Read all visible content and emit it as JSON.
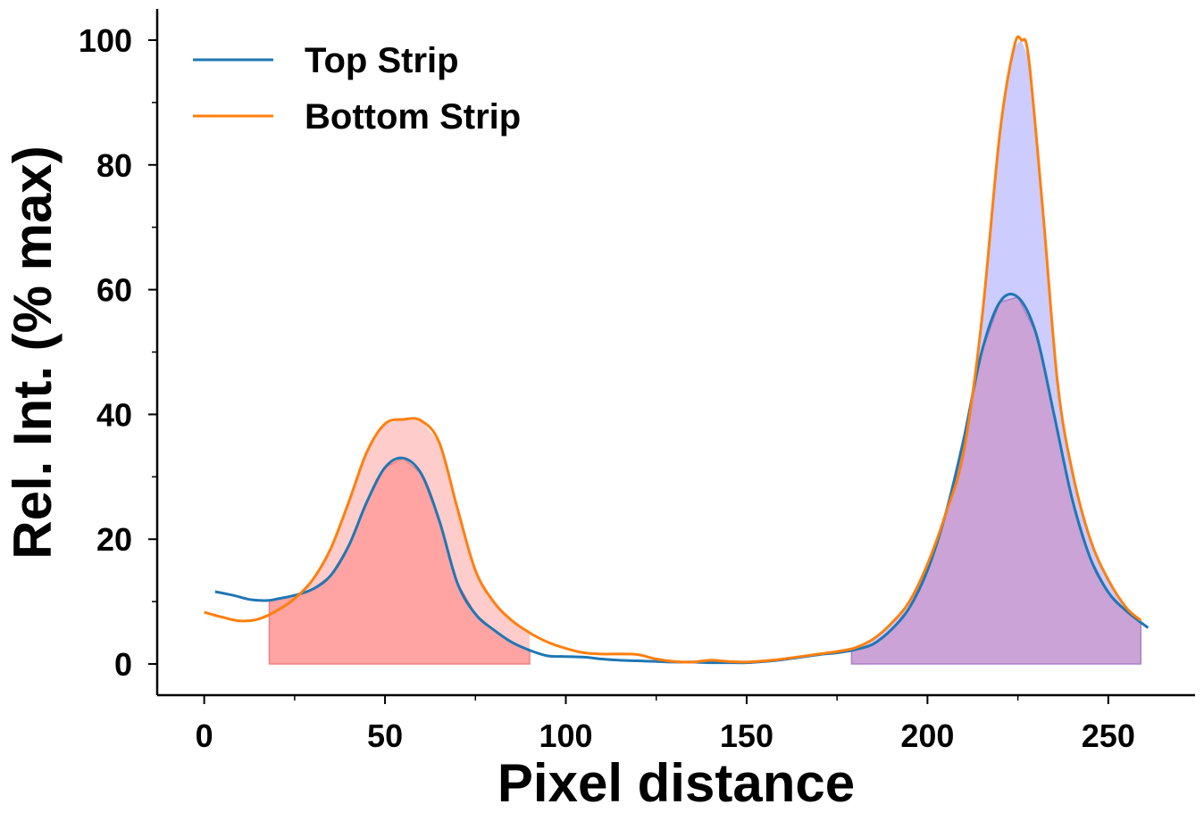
{
  "chart_data": {
    "type": "line",
    "xlabel": "Pixel distance",
    "ylabel": "Rel. Int. (% max)",
    "xlim": [
      -13,
      274
    ],
    "ylim": [
      -5,
      105
    ],
    "xticks": [
      0,
      50,
      100,
      150,
      200,
      250
    ],
    "yticks": [
      0,
      20,
      40,
      60,
      80,
      100
    ],
    "x_minor_step": 25,
    "y_minor_step": 10,
    "grid": false,
    "legend_position": "top-left",
    "series": [
      {
        "name": "Top Strip",
        "color": "#1f77b4",
        "x": [
          3,
          8,
          12,
          15,
          18,
          20,
          25,
          30,
          35,
          40,
          45,
          50,
          55,
          60,
          65,
          70,
          75,
          80,
          85,
          90,
          95,
          100,
          105,
          110,
          115,
          120,
          125,
          130,
          135,
          140,
          145,
          150,
          155,
          160,
          165,
          170,
          175,
          180,
          185,
          190,
          195,
          200,
          205,
          210,
          215,
          220,
          225,
          230,
          235,
          240,
          245,
          250,
          255,
          261
        ],
        "y": [
          11.6,
          11.0,
          10.4,
          10.2,
          10.2,
          10.4,
          11.0,
          12.0,
          14.2,
          19.0,
          26.0,
          31.5,
          33.0,
          30.5,
          23.0,
          13.0,
          8.0,
          5.5,
          3.5,
          2.2,
          1.3,
          1.2,
          1.1,
          0.8,
          0.6,
          0.5,
          0.4,
          0.3,
          0.3,
          0.2,
          0.2,
          0.2,
          0.4,
          0.7,
          1.1,
          1.5,
          1.8,
          2.3,
          3.2,
          5.5,
          9.0,
          15.0,
          24.0,
          36.0,
          50.0,
          58.0,
          58.8,
          53.0,
          40.0,
          26.5,
          17.0,
          11.5,
          8.5,
          5.8
        ]
      },
      {
        "name": "Bottom Strip",
        "color": "#ff7f0e",
        "x": [
          0,
          5,
          10,
          15,
          20,
          25,
          30,
          35,
          40,
          45,
          50,
          55,
          60,
          65,
          70,
          75,
          80,
          85,
          90,
          95,
          100,
          105,
          110,
          115,
          120,
          125,
          130,
          135,
          140,
          145,
          150,
          155,
          160,
          165,
          170,
          175,
          180,
          185,
          190,
          195,
          200,
          205,
          210,
          215,
          220,
          224,
          226,
          228,
          232,
          236,
          240,
          245,
          250,
          255,
          259
        ],
        "y": [
          8.3,
          7.5,
          6.9,
          7.2,
          8.5,
          10.5,
          13.5,
          18.5,
          26.0,
          34.0,
          38.5,
          39.2,
          39.0,
          35.5,
          25.0,
          15.0,
          10.0,
          7.0,
          5.0,
          3.5,
          2.5,
          1.8,
          1.6,
          1.6,
          1.5,
          0.8,
          0.4,
          0.3,
          0.6,
          0.4,
          0.3,
          0.5,
          0.8,
          1.2,
          1.6,
          2.0,
          2.6,
          4.0,
          6.5,
          10.0,
          16.0,
          24.0,
          34.0,
          55.0,
          85.0,
          99.0,
          100.0,
          97.0,
          72.0,
          45.0,
          31.0,
          20.0,
          13.5,
          9.0,
          7.0
        ]
      }
    ],
    "shaded_regions": [
      {
        "x0": 18,
        "x1": 90,
        "outer_fill": "#ffcccc",
        "inner_fill": "#ffa3a3",
        "edge": "#f08080"
      },
      {
        "x0": 179,
        "x1": 259,
        "outer_fill": "#ccccff",
        "inner_fill": "#cba3d6",
        "edge": "#b080c8"
      }
    ]
  }
}
